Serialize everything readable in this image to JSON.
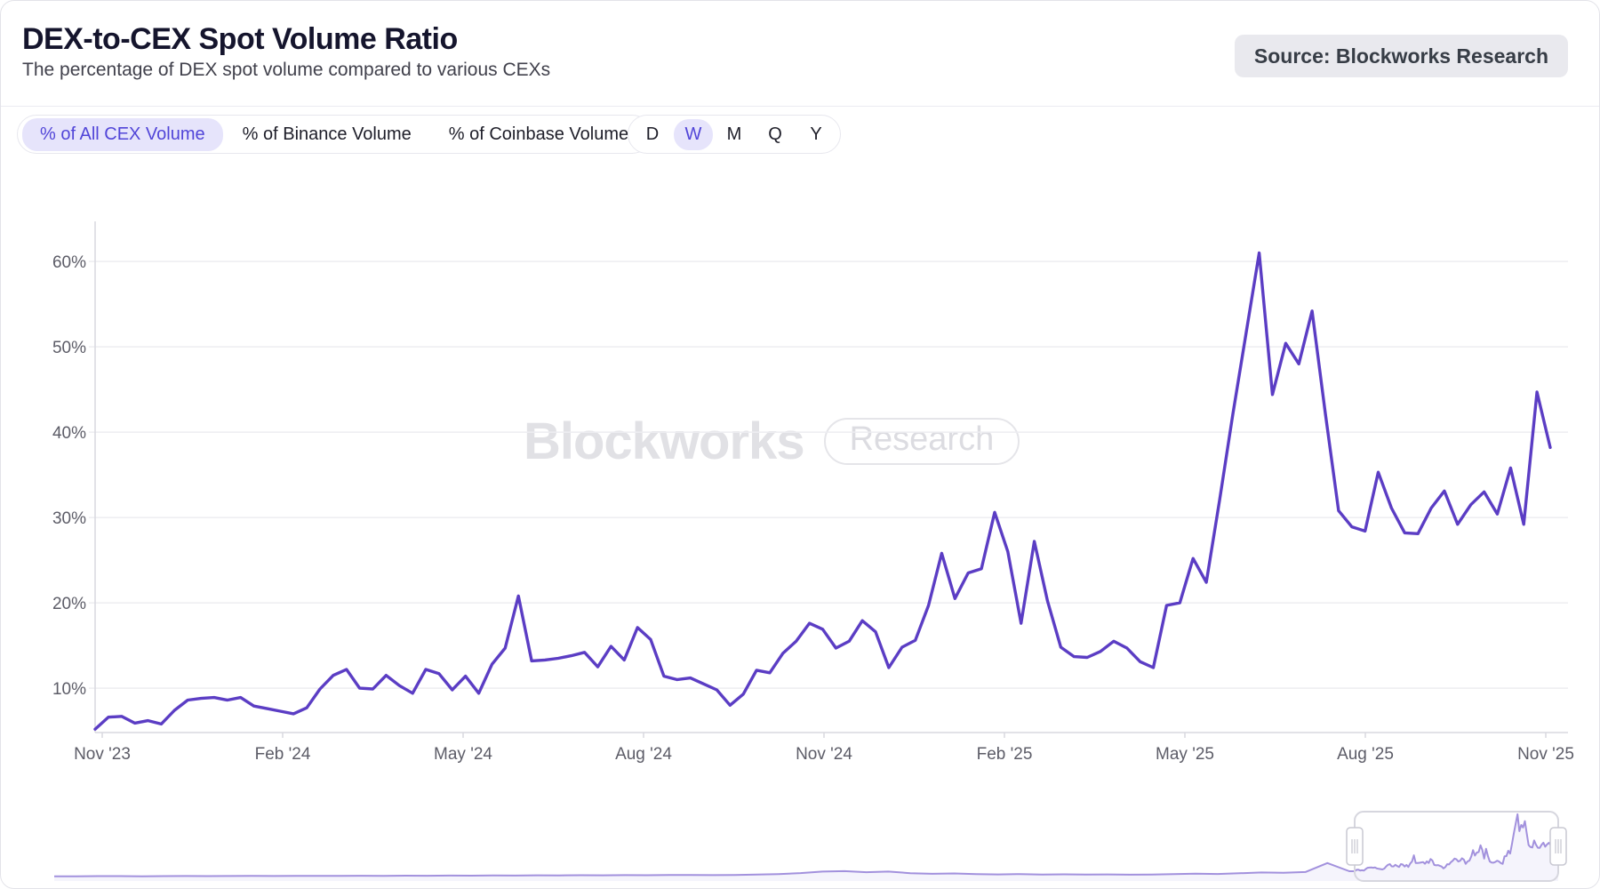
{
  "header": {
    "title": "DEX-to-CEX Spot Volume Ratio",
    "subtitle": "The percentage of DEX spot volume compared to various CEXs",
    "source_badge": "Source: Blockworks Research"
  },
  "toolbar": {
    "metric_tabs": [
      {
        "label": "% of All CEX Volume",
        "selected": true
      },
      {
        "label": "% of Binance Volume",
        "selected": false
      },
      {
        "label": "% of Coinbase Volume",
        "selected": false
      }
    ],
    "period_buttons": [
      {
        "label": "D",
        "selected": false
      },
      {
        "label": "W",
        "selected": true
      },
      {
        "label": "M",
        "selected": false
      },
      {
        "label": "Q",
        "selected": false
      },
      {
        "label": "Y",
        "selected": false
      }
    ]
  },
  "watermark": {
    "brand": "Blockworks",
    "badge": "Research"
  },
  "colors": {
    "line": "#5b3dc4",
    "navigator_line": "#a291dd",
    "navigator_fill": "rgba(91,61,196,0.06)",
    "grid": "#ededf1",
    "axis": "#d8d8df",
    "selected_pill_bg": "#e6e4fb",
    "selected_pill_text": "#5145d8",
    "badge_bg": "#e9e9ee"
  },
  "chart_data": {
    "type": "line",
    "title": "DEX-to-CEX Spot Volume Ratio",
    "subtitle": "The percentage of DEX spot volume compared to various CEXs",
    "unit": "%",
    "frequency_selected": "W",
    "grid": "horizontal",
    "legend_position": "none",
    "x_tick_labels": [
      "Nov '23",
      "Feb '24",
      "May '24",
      "Aug '24",
      "Nov '24",
      "Feb '25",
      "May '25",
      "Aug '25",
      "Nov '25"
    ],
    "y_ticks": [
      10,
      20,
      30,
      40,
      50,
      60
    ],
    "y_tick_labels": [
      "10%",
      "20%",
      "30%",
      "40%",
      "50%",
      "60%"
    ],
    "ylim": [
      4.8,
      64.7
    ],
    "x_range": [
      "Nov '23",
      "Nov '25"
    ],
    "series": [
      {
        "name": "% of All CEX Volume",
        "cadence": "weekly",
        "values": [
          5.2,
          6.6,
          6.7,
          5.9,
          6.2,
          5.8,
          7.4,
          8.6,
          8.8,
          8.9,
          8.6,
          8.9,
          7.9,
          7.6,
          7.3,
          7.0,
          7.7,
          9.9,
          11.5,
          12.2,
          10.0,
          9.9,
          11.5,
          10.3,
          9.4,
          12.2,
          11.7,
          9.8,
          11.4,
          9.4,
          12.8,
          14.7,
          20.8,
          13.2,
          13.3,
          13.5,
          13.8,
          14.2,
          12.5,
          14.9,
          13.3,
          17.1,
          15.7,
          11.4,
          11.0,
          11.2,
          10.5,
          9.8,
          8.0,
          9.3,
          12.1,
          11.8,
          14.1,
          15.5,
          17.6,
          16.9,
          14.7,
          15.5,
          17.9,
          16.6,
          12.4,
          14.8,
          15.6,
          19.7,
          25.8,
          20.5,
          23.5,
          24.0,
          30.6,
          26.0,
          17.6,
          27.2,
          20.2,
          14.8,
          13.7,
          13.6,
          14.3,
          15.5,
          14.7,
          13.1,
          12.4,
          19.7,
          20.0,
          25.2,
          22.4,
          32.0,
          42.0,
          51.5,
          61.0,
          44.4,
          50.4,
          48.0,
          54.2,
          42.2,
          30.8,
          28.9,
          28.4,
          35.3,
          31.1,
          28.2,
          28.1,
          31.1,
          33.1,
          29.2,
          31.5,
          33.0,
          30.4,
          35.8,
          29.2,
          44.7,
          38.2
        ]
      }
    ],
    "navigator": {
      "description": "full-history mini chart with range selection covering the charted Nov '23 to Nov '25 window",
      "history_values": [
        0.3,
        0.3,
        0.4,
        0.4,
        0.3,
        0.4,
        0.5,
        0.4,
        0.5,
        0.6,
        0.5,
        0.6,
        0.7,
        0.6,
        0.8,
        0.7,
        0.9,
        0.8,
        1.0,
        0.9,
        1.1,
        1.0,
        1.2,
        1.1,
        1.3,
        1.2,
        1.4,
        1.3,
        1.5,
        1.6,
        1.4,
        1.6,
        1.9,
        2.4,
        3.4,
        4.9,
        5.3,
        4.3,
        4.9,
        3.3,
        2.7,
        3.0,
        2.4,
        2.1,
        2.4,
        2.0,
        2.2,
        1.9,
        2.1,
        1.8,
        2.0,
        2.4,
        2.8,
        2.5,
        3.2,
        4.0,
        3.7,
        4.4,
        13.2,
        5.2
      ]
    }
  }
}
